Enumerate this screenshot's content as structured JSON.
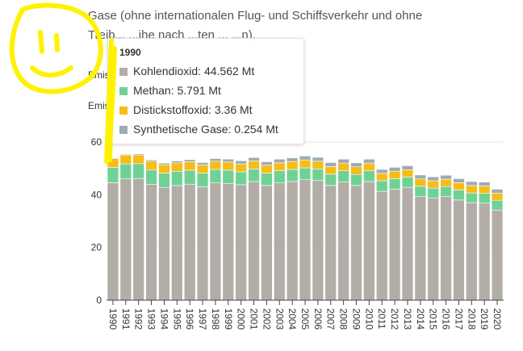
{
  "intro": {
    "line1": "Gase (ohne internationalen Flug- und Schiffsverkehr und ohne",
    "line2": "Treib... ...ihe nach ...ten ... ...n)."
  },
  "labels": {
    "emis1": "Emis",
    "emis2": "Emis"
  },
  "tooltip": {
    "year": "1990",
    "rows": [
      {
        "label": "Kohlendioxid: 44.562 Mt",
        "color": "#b3ada7"
      },
      {
        "label": "Methan: 5.791 Mt",
        "color": "#6fd294"
      },
      {
        "label": "Distickstoffoxid: 3.36 Mt",
        "color": "#f6bc17"
      },
      {
        "label": "Synthetische Gase: 0.254 Mt",
        "color": "#9eabb4"
      }
    ]
  },
  "chart_data": {
    "type": "bar",
    "stacked": true,
    "categories": [
      "1990",
      "1991",
      "1992",
      "1993",
      "1994",
      "1995",
      "1996",
      "1997",
      "1998",
      "1999",
      "2000",
      "2001",
      "2002",
      "2003",
      "2004",
      "2005",
      "2006",
      "2007",
      "2008",
      "2009",
      "2010",
      "2011",
      "2012",
      "2013",
      "2014",
      "2015",
      "2016",
      "2017",
      "2018",
      "2019",
      "2020"
    ],
    "ylim": [
      0,
      60
    ],
    "yticks": [
      0,
      20,
      40,
      60
    ],
    "grid": true,
    "series": [
      {
        "name": "Kohlendioxid",
        "color": "#b3ada7",
        "values": [
          44.562,
          46.0,
          46.2,
          44.0,
          42.8,
          43.5,
          44.0,
          43.0,
          44.5,
          44.3,
          43.8,
          45.0,
          43.5,
          44.5,
          45.0,
          45.7,
          45.4,
          43.5,
          44.8,
          43.5,
          45.0,
          41.3,
          42.1,
          42.8,
          39.3,
          38.7,
          39.3,
          38.0,
          37.0,
          36.8,
          34.2
        ]
      },
      {
        "name": "Methan",
        "color": "#6fd294",
        "values": [
          5.791,
          5.7,
          5.6,
          5.5,
          5.4,
          5.4,
          5.3,
          5.2,
          5.1,
          5.0,
          4.9,
          4.8,
          4.7,
          4.6,
          4.6,
          4.5,
          4.4,
          4.3,
          4.3,
          4.2,
          4.1,
          4.0,
          4.0,
          3.9,
          3.9,
          3.8,
          3.8,
          3.8,
          3.7,
          3.7,
          3.7
        ]
      },
      {
        "name": "Distickstoffoxid",
        "color": "#f6bc17",
        "values": [
          3.36,
          3.4,
          3.3,
          3.2,
          3.2,
          3.2,
          3.2,
          3.1,
          3.1,
          3.1,
          3.0,
          3.0,
          3.0,
          3.0,
          3.0,
          3.0,
          2.9,
          2.9,
          2.9,
          2.9,
          2.9,
          2.8,
          2.8,
          2.8,
          2.8,
          2.8,
          2.8,
          2.8,
          2.8,
          2.8,
          2.7
        ]
      },
      {
        "name": "Synthetische Gase",
        "color": "#9eabb4",
        "values": [
          0.254,
          0.3,
          0.4,
          0.5,
          0.6,
          0.7,
          0.8,
          0.9,
          1.0,
          1.1,
          1.2,
          1.3,
          1.3,
          1.4,
          1.4,
          1.5,
          1.5,
          1.5,
          1.5,
          1.5,
          1.5,
          1.5,
          1.5,
          1.5,
          1.5,
          1.5,
          1.5,
          1.5,
          1.5,
          1.5,
          1.5
        ]
      }
    ]
  }
}
